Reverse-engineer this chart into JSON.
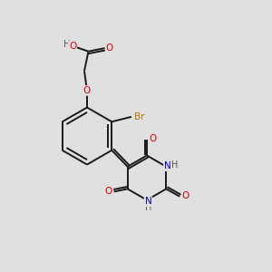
{
  "bg_color": "#e0e0e0",
  "atom_colors": {
    "C": "#1a1a1a",
    "O": "#dd0000",
    "N": "#0000bb",
    "H": "#555555",
    "Br": "#bb7700"
  },
  "bond_color": "#1a1a1a",
  "bond_width": 1.4,
  "font_size": 7.5
}
